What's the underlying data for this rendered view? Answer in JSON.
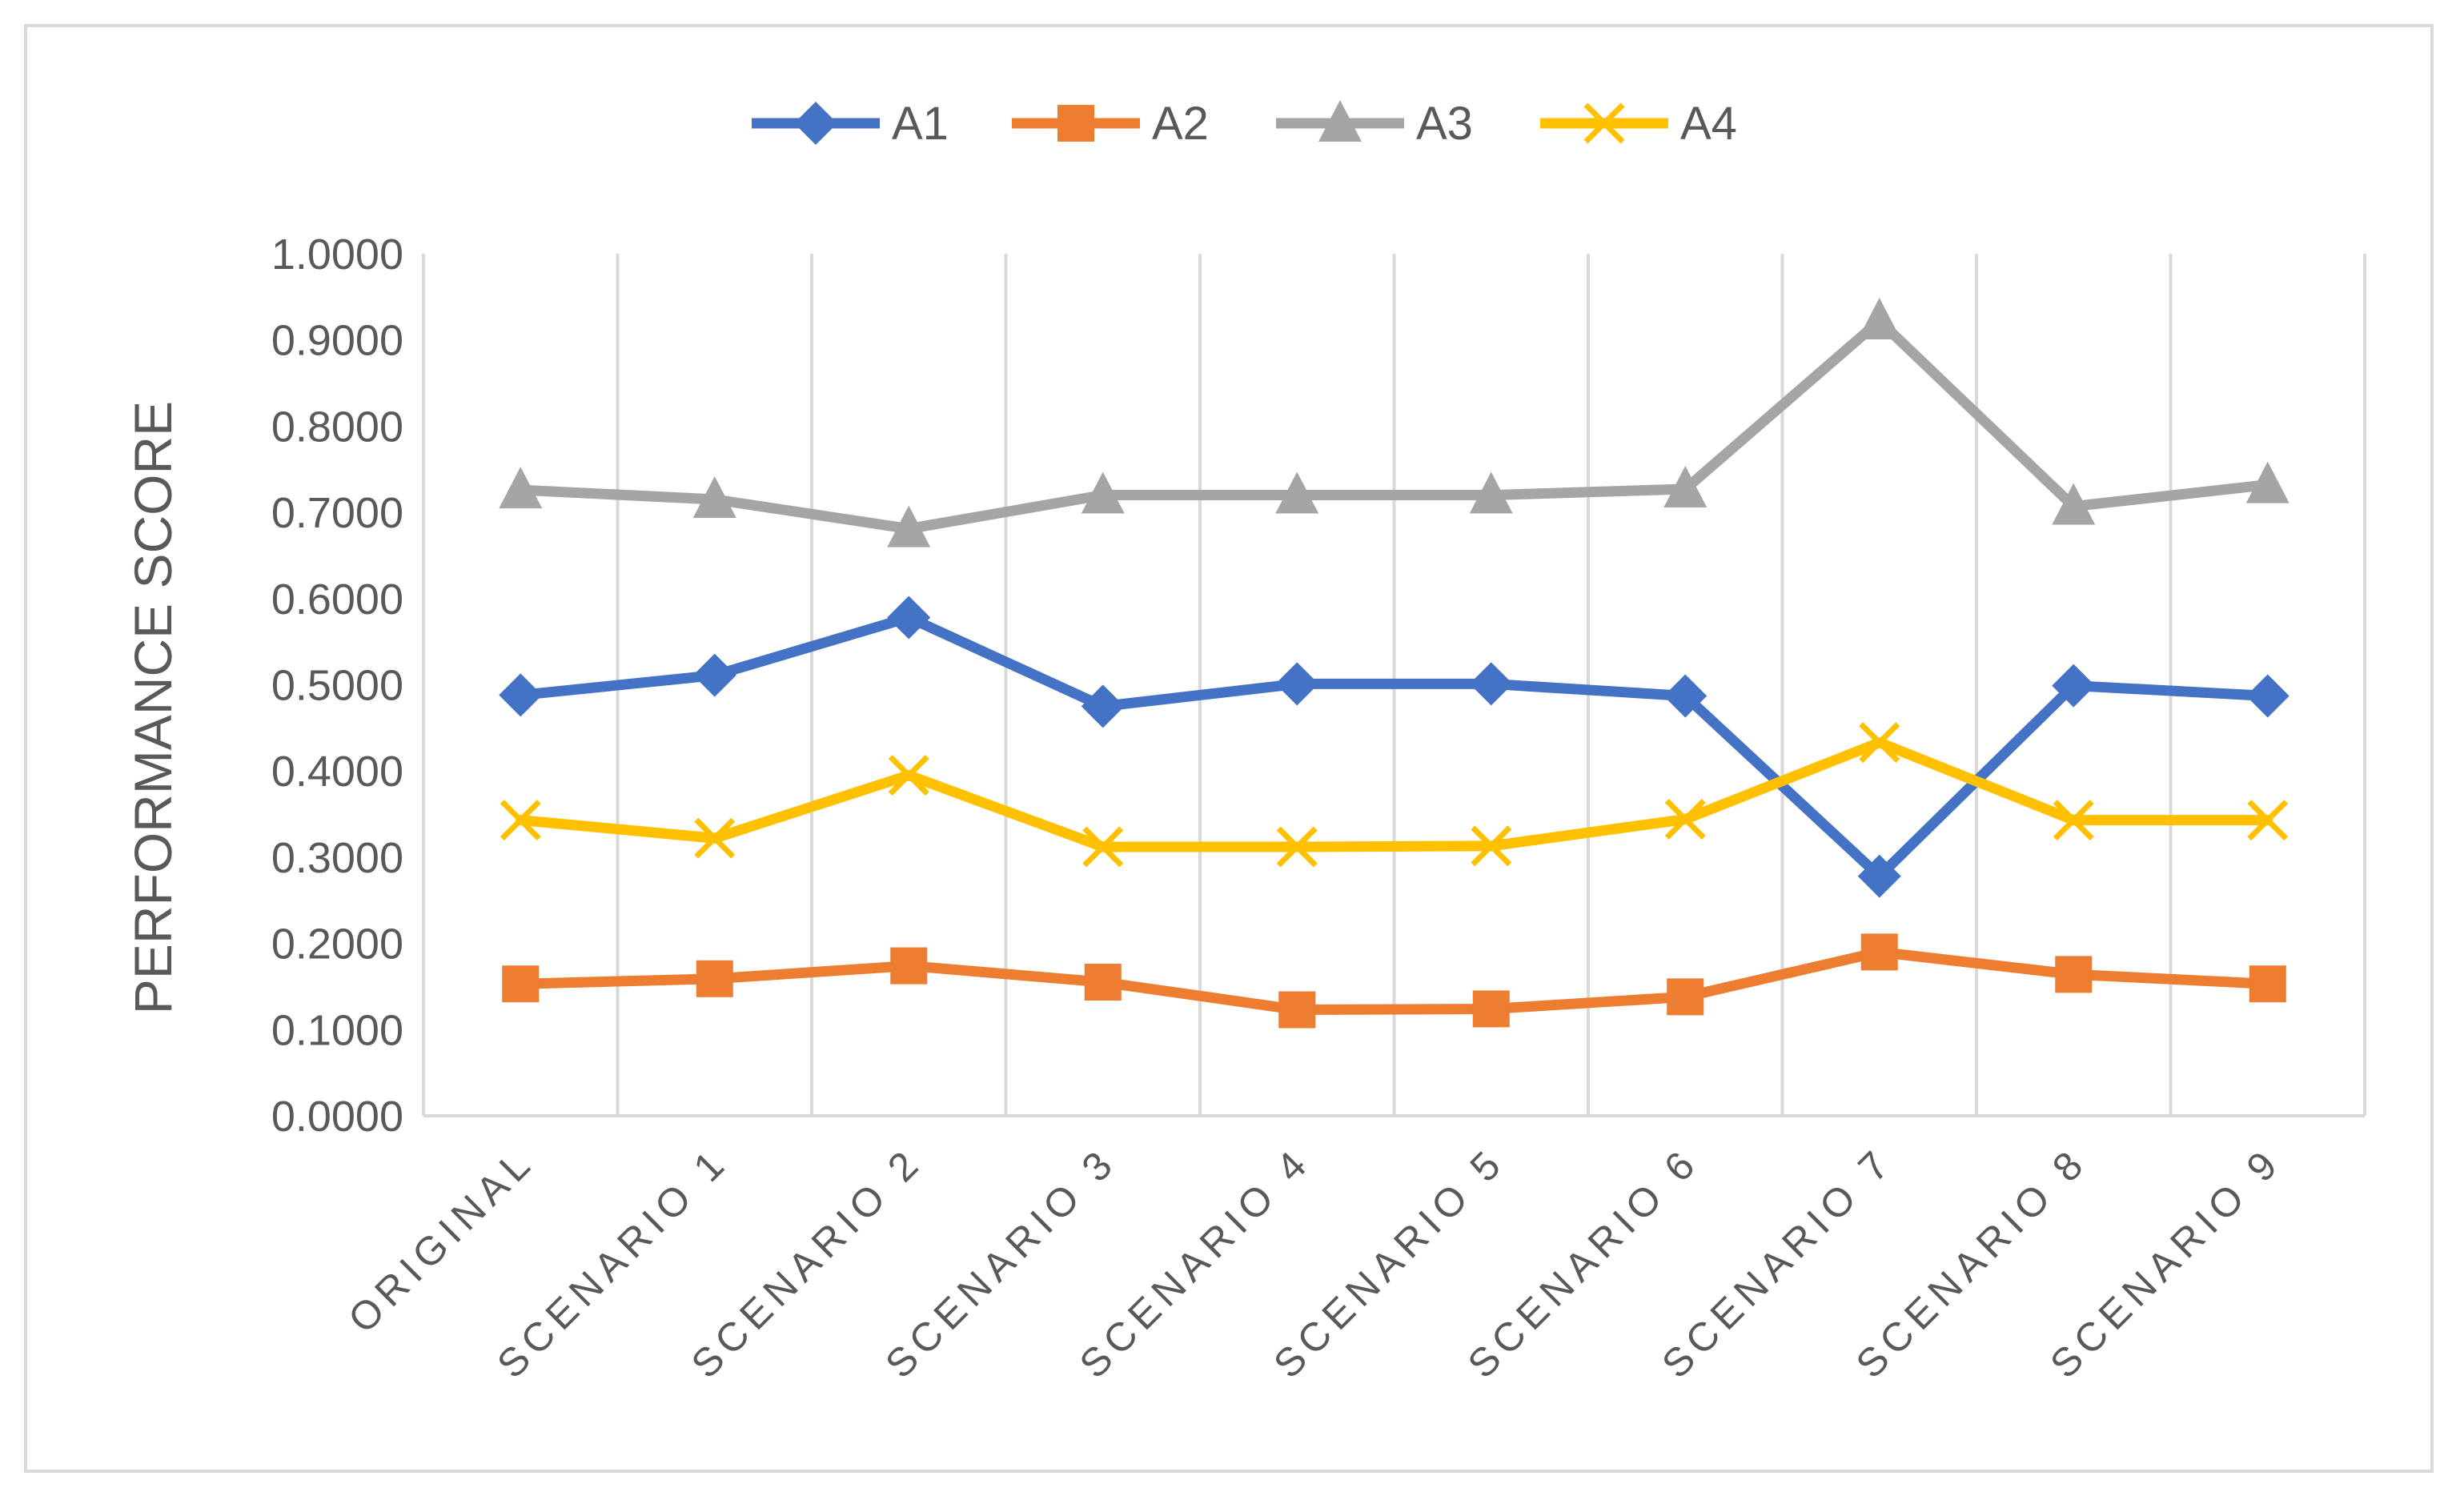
{
  "chart_data": {
    "type": "line",
    "title": "",
    "xlabel": "",
    "ylabel": "PERFORMANCE SCORE",
    "ylim": [
      0,
      1
    ],
    "ytick_step": 0.1,
    "ytick_labels": [
      "0.0000",
      "0.1000",
      "0.2000",
      "0.3000",
      "0.4000",
      "0.5000",
      "0.6000",
      "0.7000",
      "0.8000",
      "0.9000",
      "1.0000"
    ],
    "grid": "vertical",
    "legend_position": "top-center",
    "categories": [
      "ORIGINAL",
      "SCENARIO 1",
      "SCENARIO 2",
      "SCENARIO 3",
      "SCENARIO 4",
      "SCENARIO 5",
      "SCENARIO 6",
      "SCENARIO 7",
      "SCENARIO 8",
      "SCENARIO 9"
    ],
    "series": [
      {
        "name": "A1",
        "color": "#4472c4",
        "marker": "diamond",
        "values": [
          0.488,
          0.511,
          0.578,
          0.475,
          0.501,
          0.501,
          0.487,
          0.278,
          0.499,
          0.487
        ]
      },
      {
        "name": "A2",
        "color": "#ed7d31",
        "marker": "square",
        "values": [
          0.153,
          0.159,
          0.174,
          0.155,
          0.123,
          0.124,
          0.138,
          0.19,
          0.164,
          0.153
        ]
      },
      {
        "name": "A3",
        "color": "#a5a5a5",
        "marker": "triangle",
        "values": [
          0.726,
          0.715,
          0.681,
          0.72,
          0.72,
          0.72,
          0.727,
          0.922,
          0.707,
          0.732
        ]
      },
      {
        "name": "A4",
        "color": "#ffc000",
        "marker": "x",
        "values": [
          0.343,
          0.322,
          0.395,
          0.312,
          0.312,
          0.313,
          0.344,
          0.433,
          0.343,
          0.343
        ]
      }
    ]
  }
}
